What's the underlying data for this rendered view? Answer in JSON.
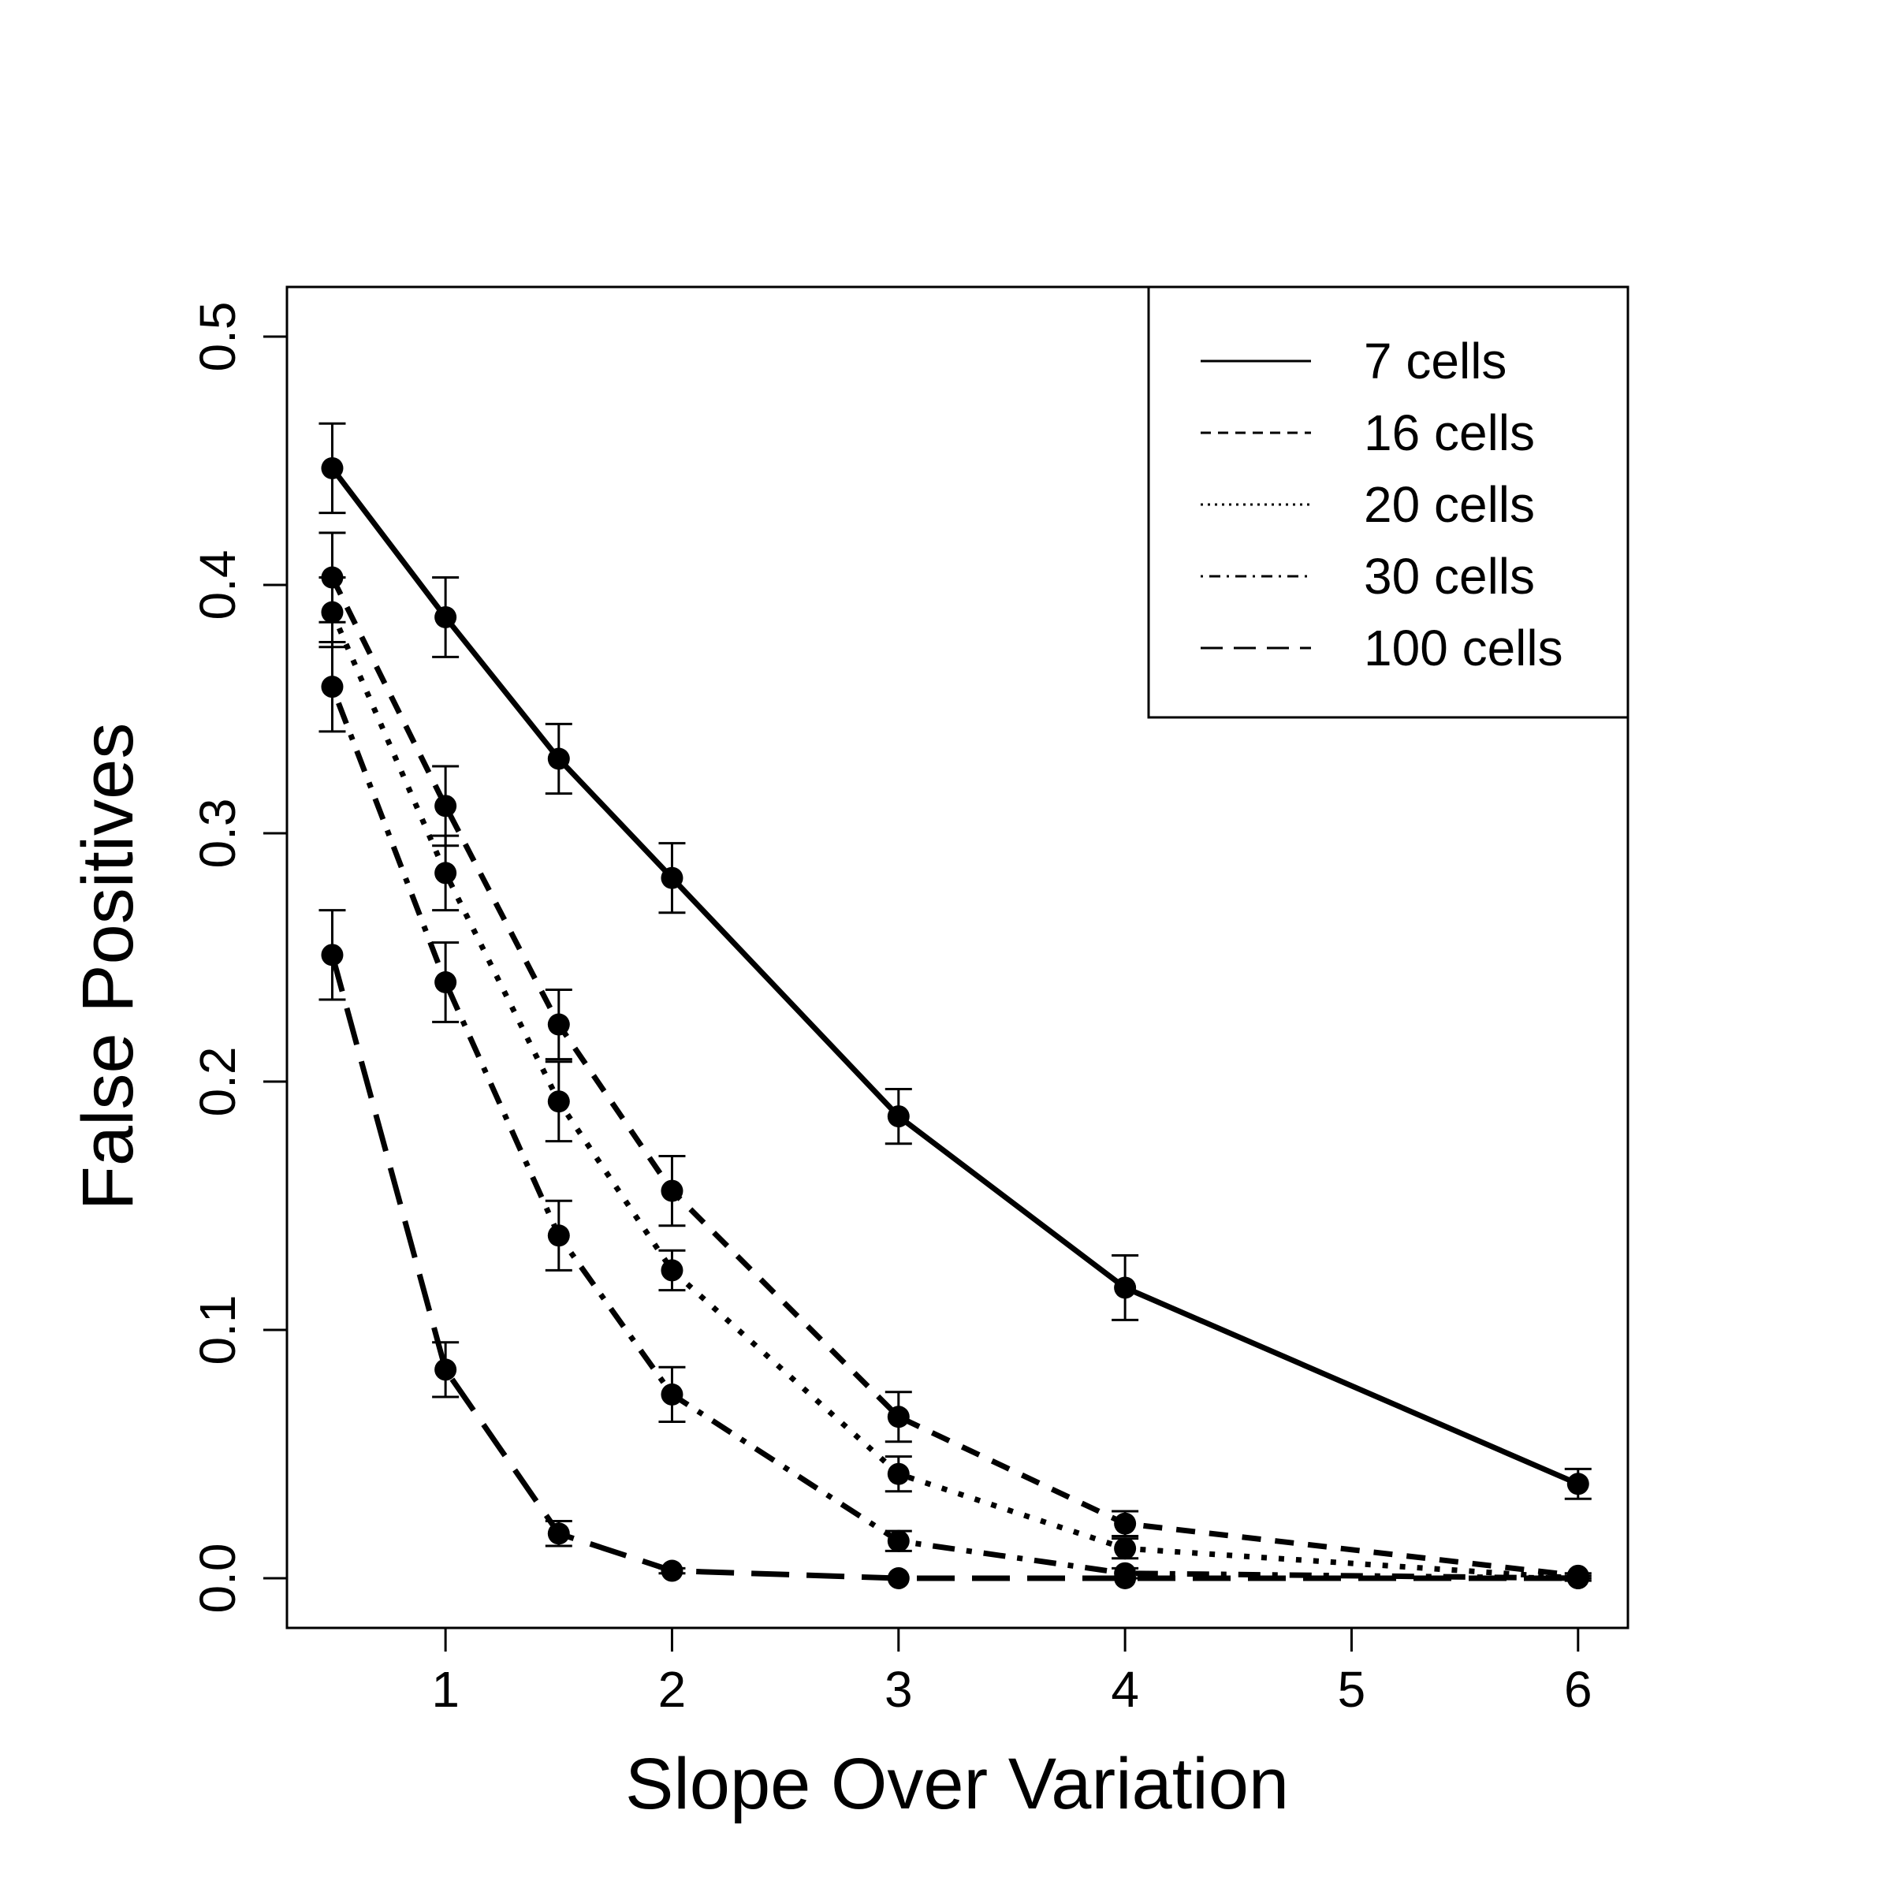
{
  "chart_data": {
    "type": "line",
    "xlabel": "Slope Over Variation",
    "ylabel": "False Positives",
    "xlim": [
      0.3,
      6.22
    ],
    "ylim": [
      -0.02,
      0.52
    ],
    "x_ticks": [
      1,
      2,
      3,
      4,
      5,
      6
    ],
    "y_ticks": [
      0.0,
      0.1,
      0.2,
      0.3,
      0.4,
      0.5
    ],
    "y_tick_labels": [
      "0.0",
      "0.1",
      "0.2",
      "0.3",
      "0.4",
      "0.5"
    ],
    "grid": false,
    "legend_position": "top-right",
    "x": [
      0.5,
      1,
      1.5,
      2,
      3,
      4,
      6
    ],
    "series": [
      {
        "name": "7 cells",
        "style": "solid",
        "values": [
          0.447,
          0.387,
          0.33,
          0.282,
          0.186,
          0.117,
          0.038
        ],
        "error": [
          0.018,
          0.016,
          0.014,
          0.014,
          0.011,
          0.013,
          0.006
        ]
      },
      {
        "name": "16 cells",
        "style": "dashed",
        "values": [
          0.403,
          0.311,
          0.223,
          0.156,
          0.065,
          0.022,
          0.001
        ],
        "error": [
          0.018,
          0.016,
          0.014,
          0.014,
          0.01,
          0.005,
          0.001
        ]
      },
      {
        "name": "20 cells",
        "style": "dotted",
        "values": [
          0.389,
          0.284,
          0.192,
          0.124,
          0.042,
          0.012,
          0.0
        ],
        "error": [
          0.014,
          0.015,
          0.016,
          0.008,
          0.007,
          0.004,
          0.001
        ]
      },
      {
        "name": "30 cells",
        "style": "dotdash",
        "values": [
          0.359,
          0.24,
          0.138,
          0.074,
          0.015,
          0.002,
          0.0
        ],
        "error": [
          0.018,
          0.016,
          0.014,
          0.011,
          0.004,
          0.002,
          0.0
        ]
      },
      {
        "name": "100 cells",
        "style": "longdash",
        "values": [
          0.251,
          0.084,
          0.018,
          0.003,
          0.0,
          0.0,
          0.0
        ],
        "error": [
          0.018,
          0.011,
          0.005,
          0.001,
          0.0,
          0.0,
          0.0
        ]
      }
    ]
  }
}
